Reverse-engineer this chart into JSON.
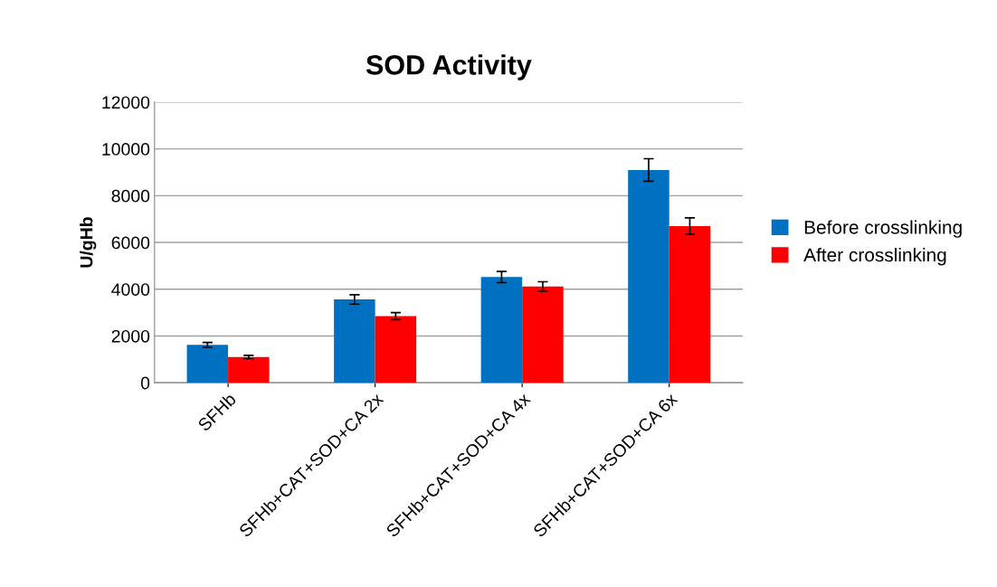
{
  "chart_data": {
    "type": "bar",
    "title": "SOD Activity",
    "ylabel": "U/gHb",
    "categories": [
      "SFHb",
      "SFHb+CAT+SOD+CA 2x",
      "SFHb+CAT+SOD+CA 4x",
      "SFHb+CAT+SOD+CA 6x"
    ],
    "series": [
      {
        "name": "Before crosslinking",
        "color": "#0070c0",
        "values": [
          1620,
          3560,
          4520,
          9100
        ],
        "errors": [
          100,
          200,
          240,
          480
        ]
      },
      {
        "name": "After crosslinking",
        "color": "#ff0000",
        "values": [
          1100,
          2850,
          4120,
          6700
        ],
        "errors": [
          70,
          150,
          200,
          350
        ]
      }
    ],
    "ylim": [
      0,
      12000
    ],
    "yticks": [
      0,
      2000,
      4000,
      6000,
      8000,
      10000,
      12000
    ],
    "grid": "y",
    "legend": "right"
  }
}
